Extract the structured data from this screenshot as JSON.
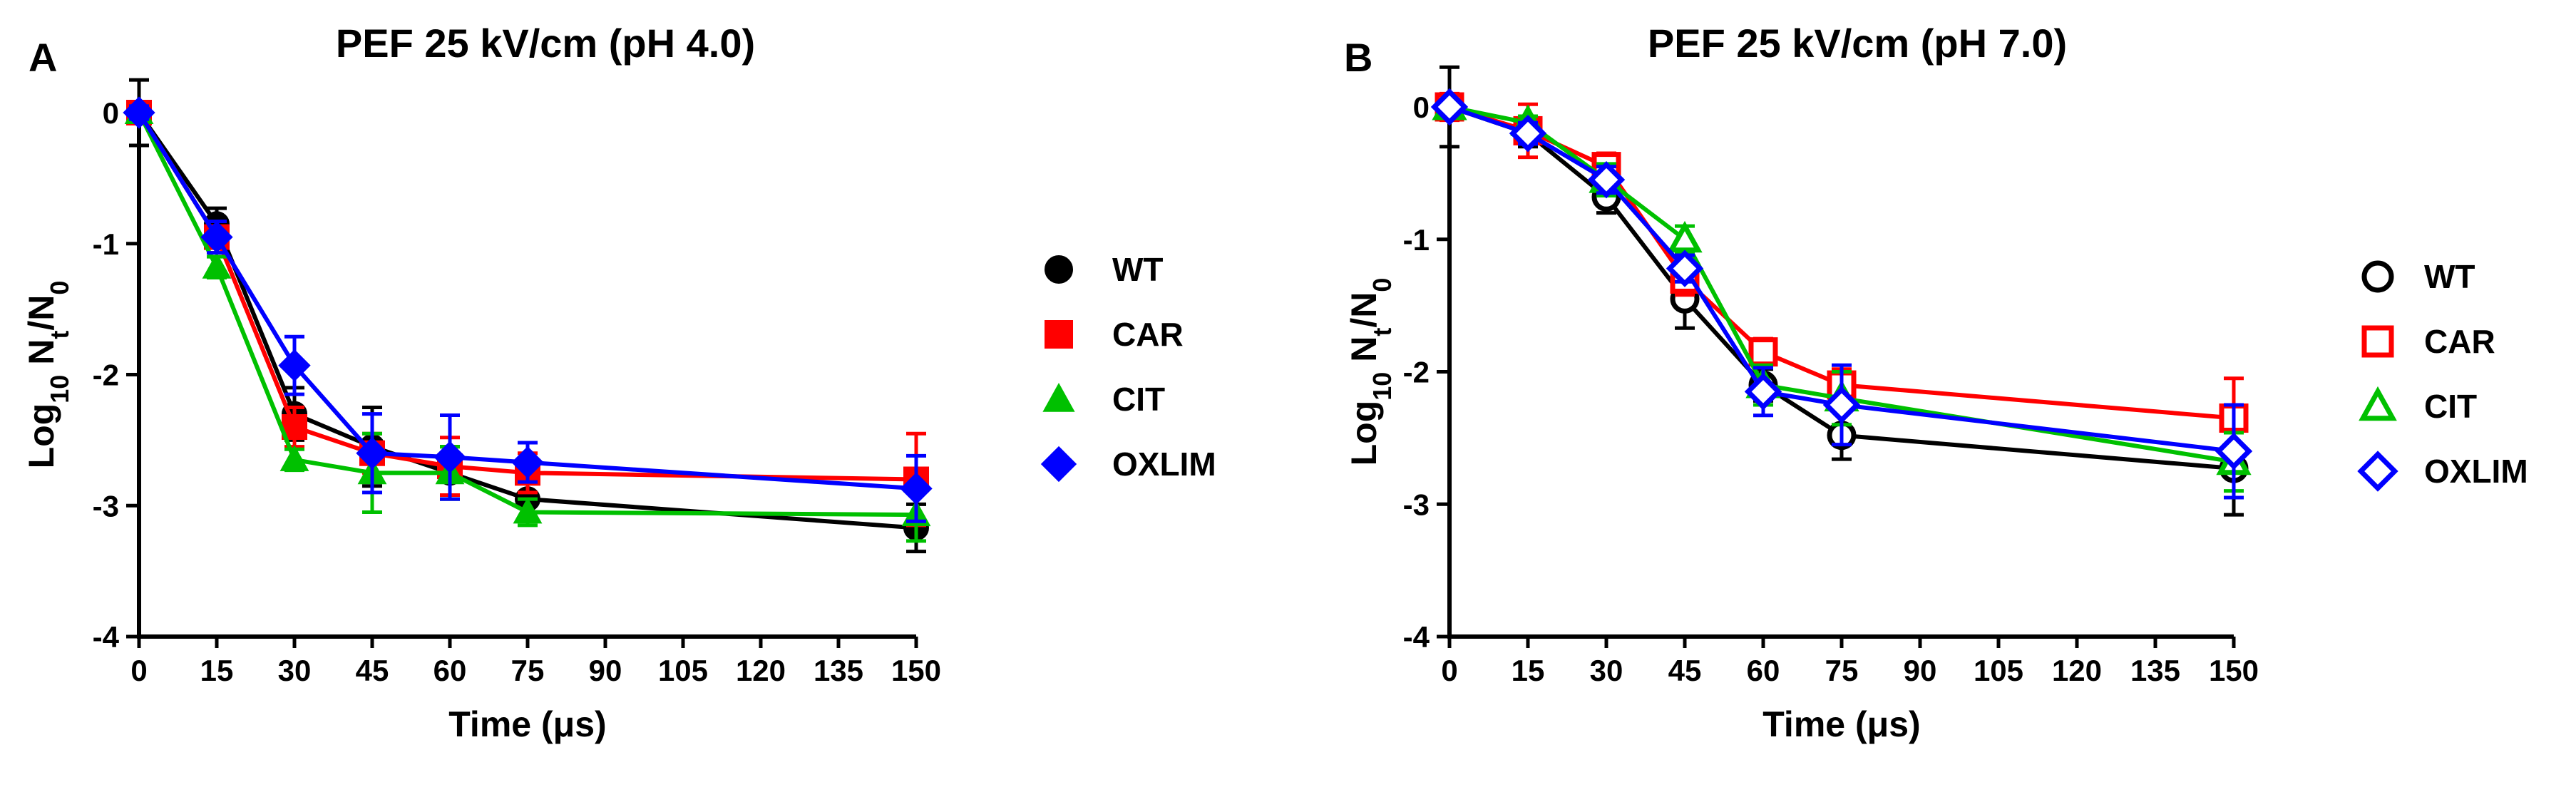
{
  "chart_data": [
    {
      "type": "line",
      "panel_label": "A",
      "title": "PEF 25 kV/cm (pH 4.0)",
      "xlabel": "Time (μs)",
      "ylabel": "Log10 Nt/N0",
      "ylabel_parts": {
        "main": "Log",
        "sub1": "10",
        "mid": " N",
        "sub2": "t",
        "slash": "/N",
        "sub3": "0"
      },
      "xlim": [
        0,
        150
      ],
      "ylim": [
        -4,
        0
      ],
      "xticks": [
        "0",
        "15",
        "30",
        "45",
        "60",
        "75",
        "90",
        "105",
        "120",
        "135",
        "150"
      ],
      "yticks": [
        "0",
        "-1",
        "-2",
        "-3",
        "-4"
      ],
      "x": [
        0,
        15,
        30,
        45,
        60,
        75,
        150
      ],
      "marker_fill": "filled",
      "legend_position": "right",
      "series": [
        {
          "name": "WT",
          "color": "#000000",
          "marker": "circle",
          "values": [
            0,
            -0.85,
            -2.3,
            -2.55,
            -2.75,
            -2.95,
            -3.17
          ],
          "errors": [
            0.25,
            0.12,
            0.2,
            0.3,
            0.2,
            0.15,
            0.18
          ]
        },
        {
          "name": "CAR",
          "color": "#ff0000",
          "marker": "square",
          "values": [
            0,
            -0.95,
            -2.4,
            -2.6,
            -2.7,
            -2.75,
            -2.8
          ],
          "errors": [
            0.05,
            0.12,
            0.15,
            0.15,
            0.22,
            0.15,
            0.35
          ]
        },
        {
          "name": "CIT",
          "color": "#00c000",
          "marker": "triangle",
          "values": [
            0,
            -1.18,
            -2.65,
            -2.75,
            -2.75,
            -3.05,
            -3.07
          ],
          "errors": [
            0.05,
            0.08,
            0.08,
            0.3,
            0.2,
            0.1,
            0.2
          ]
        },
        {
          "name": "OXLIM",
          "color": "#0000ff",
          "marker": "diamond",
          "values": [
            0,
            -0.95,
            -1.93,
            -2.6,
            -2.63,
            -2.67,
            -2.87
          ],
          "errors": [
            0.05,
            0.12,
            0.22,
            0.3,
            0.32,
            0.15,
            0.25
          ]
        }
      ]
    },
    {
      "type": "line",
      "panel_label": "B",
      "title": "PEF 25 kV/cm (pH 7.0)",
      "xlabel": "Time (μs)",
      "ylabel": "Log10 Nt/N0",
      "ylabel_parts": {
        "main": "Log",
        "sub1": "10",
        "mid": " N",
        "sub2": "t",
        "slash": "/N",
        "sub3": "0"
      },
      "xlim": [
        0,
        150
      ],
      "ylim": [
        -4,
        0
      ],
      "xticks": [
        "0",
        "15",
        "30",
        "45",
        "60",
        "75",
        "90",
        "105",
        "120",
        "135",
        "150"
      ],
      "yticks": [
        "0",
        "-1",
        "-2",
        "-3",
        "-4"
      ],
      "x": [
        0,
        15,
        30,
        45,
        60,
        75,
        150
      ],
      "marker_fill": "open",
      "legend_position": "right",
      "series": [
        {
          "name": "WT",
          "color": "#000000",
          "marker": "circle",
          "values": [
            0,
            -0.2,
            -0.68,
            -1.45,
            -2.1,
            -2.48,
            -2.73
          ],
          "errors": [
            0.3,
            0.1,
            0.12,
            0.22,
            0.12,
            0.18,
            0.35
          ]
        },
        {
          "name": "CAR",
          "color": "#ff0000",
          "marker": "square",
          "values": [
            0,
            -0.18,
            -0.45,
            -1.3,
            -1.85,
            -2.1,
            -2.35
          ],
          "errors": [
            0.1,
            0.2,
            0.1,
            0.12,
            0.1,
            0.12,
            0.3
          ]
        },
        {
          "name": "CIT",
          "color": "#00c000",
          "marker": "triangle",
          "values": [
            0,
            -0.12,
            -0.55,
            -1.0,
            -2.1,
            -2.2,
            -2.68
          ],
          "errors": [
            0.05,
            0.05,
            0.12,
            0.1,
            0.15,
            0.2,
            0.22
          ]
        },
        {
          "name": "OXLIM",
          "color": "#0000ff",
          "marker": "diamond",
          "values": [
            0,
            -0.2,
            -0.55,
            -1.22,
            -2.15,
            -2.25,
            -2.6
          ],
          "errors": [
            0.05,
            0.08,
            0.1,
            0.1,
            0.18,
            0.3,
            0.35
          ]
        }
      ]
    }
  ]
}
